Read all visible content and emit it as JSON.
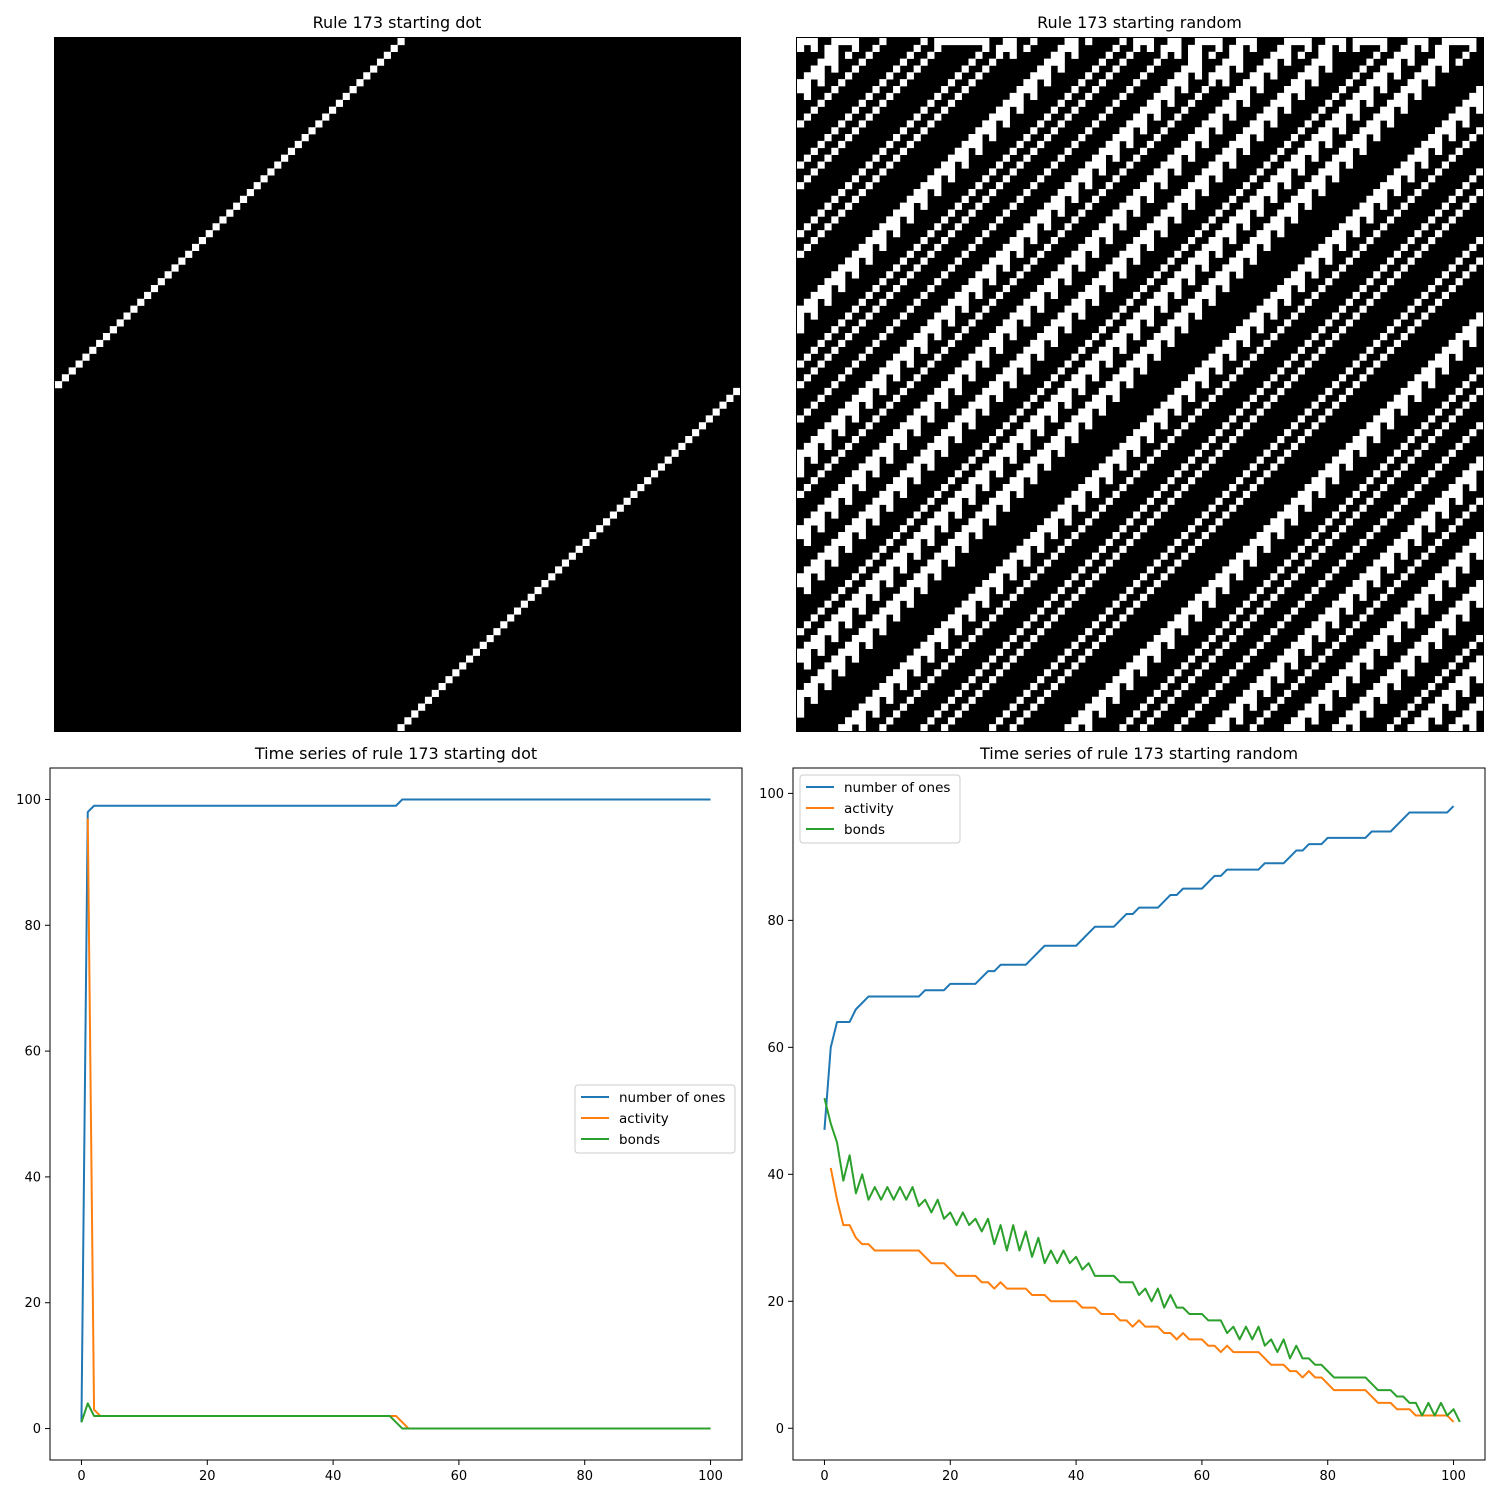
{
  "panels": {
    "ca_dot_title": "Rule 173 starting dot",
    "ca_random_title": "Rule 173 starting random",
    "ts_dot_title": "Time series of rule 173 starting dot",
    "ts_random_title": "Time series of rule 173 starting random"
  },
  "colors": {
    "number_of_ones": "#1f77b4",
    "activity": "#ff7f0e",
    "bonds": "#2ca02c"
  },
  "ca": {
    "rule": 173,
    "width": 100,
    "steps": 101,
    "random_initial_ones": 47
  },
  "chart_data": [
    {
      "type": "line",
      "title": "Time series of rule 173 starting dot",
      "xlabel": "",
      "ylabel": "",
      "xlim": [
        -5,
        105
      ],
      "ylim": [
        -5,
        105
      ],
      "xticks": [
        0,
        20,
        40,
        60,
        80,
        100
      ],
      "yticks": [
        0,
        20,
        40,
        60,
        80,
        100
      ],
      "legend_position": "center-right",
      "series": [
        {
          "name": "number of ones",
          "key": "number_of_ones",
          "points": [
            [
              0,
              1
            ],
            [
              1,
              98
            ],
            [
              2,
              99
            ],
            [
              50,
              99
            ],
            [
              51,
              100
            ],
            [
              100,
              100
            ]
          ]
        },
        {
          "name": "activity",
          "key": "activity",
          "points": [
            [
              1,
              97
            ],
            [
              2,
              3
            ],
            [
              3,
              2
            ],
            [
              50,
              2
            ],
            [
              51,
              1
            ],
            [
              52,
              0
            ],
            [
              100,
              0
            ]
          ]
        },
        {
          "name": "bonds",
          "key": "bonds",
          "points": [
            [
              0,
              1
            ],
            [
              1,
              4
            ],
            [
              2,
              2
            ],
            [
              49,
              2
            ],
            [
              51,
              0
            ],
            [
              100,
              0
            ]
          ]
        }
      ]
    },
    {
      "type": "line",
      "title": "Time series of rule 173 starting random",
      "xlabel": "",
      "ylabel": "",
      "xlim": [
        -5,
        105
      ],
      "ylim": [
        -5,
        104
      ],
      "xticks": [
        0,
        20,
        40,
        60,
        80,
        100
      ],
      "yticks": [
        0,
        20,
        40,
        60,
        80,
        100
      ],
      "legend_position": "upper-left",
      "series": [
        {
          "name": "number of ones",
          "key": "number_of_ones",
          "points": [
            [
              0,
              47
            ],
            [
              1,
              60
            ],
            [
              2,
              64
            ],
            [
              4,
              64
            ],
            [
              5,
              66
            ],
            [
              7,
              68
            ],
            [
              15,
              68
            ],
            [
              16,
              69
            ],
            [
              19,
              69
            ],
            [
              20,
              70
            ],
            [
              24,
              70
            ],
            [
              26,
              72
            ],
            [
              27,
              72
            ],
            [
              28,
              73
            ],
            [
              32,
              73
            ],
            [
              35,
              76
            ],
            [
              40,
              76
            ],
            [
              43,
              79
            ],
            [
              46,
              79
            ],
            [
              48,
              81
            ],
            [
              49,
              81
            ],
            [
              50,
              82
            ],
            [
              53,
              82
            ],
            [
              55,
              84
            ],
            [
              56,
              84
            ],
            [
              57,
              85
            ],
            [
              60,
              85
            ],
            [
              62,
              87
            ],
            [
              63,
              87
            ],
            [
              64,
              88
            ],
            [
              69,
              88
            ],
            [
              70,
              89
            ],
            [
              73,
              89
            ],
            [
              75,
              91
            ],
            [
              76,
              91
            ],
            [
              77,
              92
            ],
            [
              79,
              92
            ],
            [
              80,
              93
            ],
            [
              86,
              93
            ],
            [
              87,
              94
            ],
            [
              90,
              94
            ],
            [
              93,
              97
            ],
            [
              99,
              97
            ],
            [
              100,
              98
            ]
          ]
        },
        {
          "name": "activity",
          "key": "activity",
          "points": [
            [
              1,
              41
            ],
            [
              2,
              36
            ],
            [
              3,
              32
            ],
            [
              4,
              32
            ],
            [
              5,
              30
            ],
            [
              6,
              29
            ],
            [
              7,
              29
            ],
            [
              8,
              28
            ],
            [
              15,
              28
            ],
            [
              17,
              26
            ],
            [
              19,
              26
            ],
            [
              21,
              24
            ],
            [
              24,
              24
            ],
            [
              25,
              23
            ],
            [
              26,
              23
            ],
            [
              27,
              22
            ],
            [
              28,
              23
            ],
            [
              29,
              22
            ],
            [
              32,
              22
            ],
            [
              33,
              21
            ],
            [
              35,
              21
            ],
            [
              36,
              20
            ],
            [
              40,
              20
            ],
            [
              41,
              19
            ],
            [
              43,
              19
            ],
            [
              44,
              18
            ],
            [
              46,
              18
            ],
            [
              47,
              17
            ],
            [
              48,
              17
            ],
            [
              49,
              16
            ],
            [
              50,
              17
            ],
            [
              51,
              16
            ],
            [
              53,
              16
            ],
            [
              54,
              15
            ],
            [
              55,
              15
            ],
            [
              56,
              14
            ],
            [
              57,
              15
            ],
            [
              58,
              14
            ],
            [
              60,
              14
            ],
            [
              61,
              13
            ],
            [
              62,
              13
            ],
            [
              63,
              12
            ],
            [
              64,
              13
            ],
            [
              65,
              12
            ],
            [
              69,
              12
            ],
            [
              71,
              10
            ],
            [
              73,
              10
            ],
            [
              74,
              9
            ],
            [
              75,
              9
            ],
            [
              76,
              8
            ],
            [
              77,
              9
            ],
            [
              78,
              8
            ],
            [
              79,
              8
            ],
            [
              81,
              6
            ],
            [
              86,
              6
            ],
            [
              88,
              4
            ],
            [
              90,
              4
            ],
            [
              91,
              3
            ],
            [
              93,
              3
            ],
            [
              94,
              2
            ],
            [
              99,
              2
            ],
            [
              100,
              1
            ]
          ]
        },
        {
          "name": "bonds",
          "key": "bonds",
          "points": [
            [
              0,
              52
            ],
            [
              1,
              48
            ],
            [
              2,
              45
            ],
            [
              3,
              39
            ],
            [
              4,
              43
            ],
            [
              5,
              37
            ],
            [
              6,
              40
            ],
            [
              7,
              36
            ],
            [
              8,
              38
            ],
            [
              9,
              36
            ],
            [
              10,
              38
            ],
            [
              11,
              36
            ],
            [
              12,
              38
            ],
            [
              13,
              36
            ],
            [
              14,
              38
            ],
            [
              15,
              35
            ],
            [
              16,
              36
            ],
            [
              17,
              34
            ],
            [
              18,
              36
            ],
            [
              19,
              33
            ],
            [
              20,
              34
            ],
            [
              21,
              32
            ],
            [
              22,
              34
            ],
            [
              23,
              32
            ],
            [
              24,
              33
            ],
            [
              25,
              31
            ],
            [
              26,
              33
            ],
            [
              27,
              29
            ],
            [
              28,
              32
            ],
            [
              29,
              28
            ],
            [
              30,
              32
            ],
            [
              31,
              28
            ],
            [
              32,
              31
            ],
            [
              33,
              27
            ],
            [
              34,
              30
            ],
            [
              35,
              26
            ],
            [
              36,
              28
            ],
            [
              37,
              26
            ],
            [
              38,
              28
            ],
            [
              39,
              26
            ],
            [
              40,
              27
            ],
            [
              41,
              25
            ],
            [
              42,
              26
            ],
            [
              43,
              24
            ],
            [
              46,
              24
            ],
            [
              47,
              23
            ],
            [
              49,
              23
            ],
            [
              50,
              21
            ],
            [
              51,
              22
            ],
            [
              52,
              20
            ],
            [
              53,
              22
            ],
            [
              54,
              19
            ],
            [
              55,
              21
            ],
            [
              56,
              19
            ],
            [
              57,
              19
            ],
            [
              58,
              18
            ],
            [
              60,
              18
            ],
            [
              61,
              17
            ],
            [
              63,
              17
            ],
            [
              64,
              15
            ],
            [
              65,
              16
            ],
            [
              66,
              14
            ],
            [
              67,
              16
            ],
            [
              68,
              14
            ],
            [
              69,
              16
            ],
            [
              70,
              13
            ],
            [
              71,
              14
            ],
            [
              72,
              12
            ],
            [
              73,
              14
            ],
            [
              74,
              11
            ],
            [
              75,
              13
            ],
            [
              76,
              11
            ],
            [
              77,
              11
            ],
            [
              78,
              10
            ],
            [
              79,
              10
            ],
            [
              80,
              9
            ],
            [
              81,
              8
            ],
            [
              86,
              8
            ],
            [
              87,
              7
            ],
            [
              88,
              6
            ],
            [
              90,
              6
            ],
            [
              91,
              5
            ],
            [
              92,
              5
            ],
            [
              93,
              4
            ],
            [
              94,
              4
            ],
            [
              95,
              2
            ],
            [
              96,
              4
            ],
            [
              97,
              2
            ],
            [
              98,
              4
            ],
            [
              99,
              2
            ],
            [
              100,
              3
            ],
            [
              101,
              1
            ]
          ]
        }
      ]
    }
  ]
}
